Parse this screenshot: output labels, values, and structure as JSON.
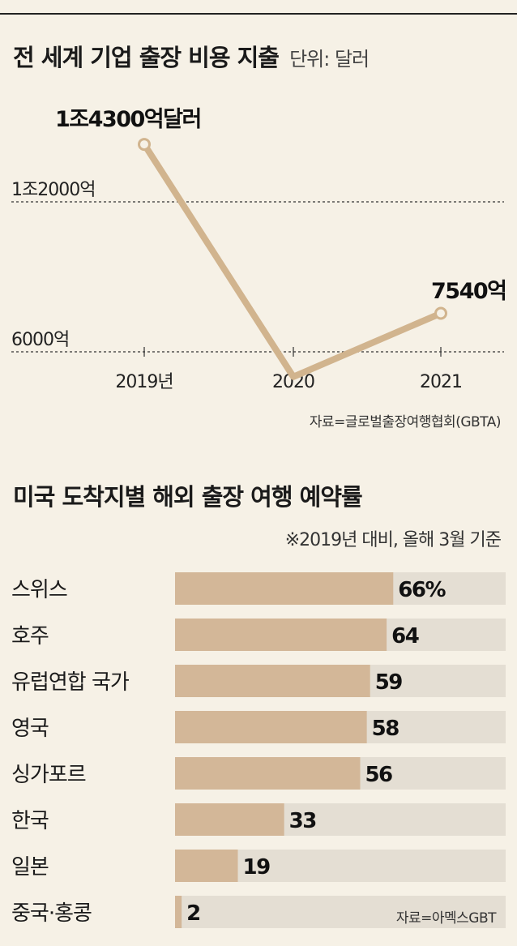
{
  "chart1": {
    "title": "전 세계 기업 출장 비용 지출",
    "unit": "단위: 달러",
    "source": "자료=글로벌출장여행협회(GBTA)"
  },
  "chart2": {
    "title": "미국 도착지별 해외 출장 여행 예약률",
    "base_note": "※2019년 대비, 올해 3월 기준",
    "source": "자료=아멕스GBT"
  },
  "chart_data": [
    {
      "type": "line",
      "title": "전 세계 기업 출장 비용 지출",
      "subtitle": "단위: 달러",
      "x": [
        "2019년",
        "2020",
        "2021"
      ],
      "series": [
        {
          "values": [
            14300,
            5000,
            7540
          ],
          "labels": [
            "1조4300억달러",
            "",
            "7540억"
          ]
        }
      ],
      "ytick_values": [
        6000,
        12000
      ],
      "yticks": [
        "6000억",
        "1조2000억"
      ],
      "ylim": [
        6000,
        12000
      ],
      "grid": true,
      "colors": {
        "line": "#d1b48e",
        "marker_fill": "#f6f1e6",
        "grid": "#333333"
      }
    },
    {
      "type": "bar",
      "orientation": "horizontal",
      "title": "미국 도착지별 해외 출장 여행 예약률",
      "subtitle": "※2019년 대비, 올해 3월 기준",
      "categories": [
        "스위스",
        "호주",
        "유럽연합 국가",
        "영국",
        "싱가포르",
        "한국",
        "일본",
        "중국·홍콩"
      ],
      "values": [
        66,
        64,
        59,
        58,
        56,
        33,
        19,
        2
      ],
      "labels": [
        "66%",
        "64",
        "59",
        "58",
        "56",
        "33",
        "19",
        "2"
      ],
      "xlim": [
        0,
        100
      ],
      "colors": {
        "bar": "#d3b798",
        "track": "#e4ded3"
      }
    }
  ]
}
